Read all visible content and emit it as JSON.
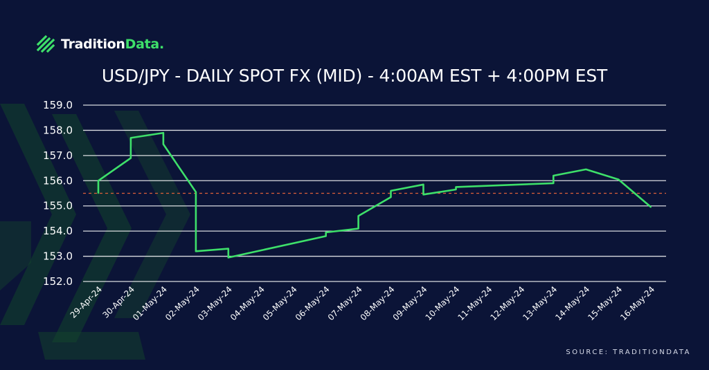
{
  "brand": {
    "name_part1": "Tradition",
    "name_part2": "Data",
    "name_part3": "."
  },
  "colors": {
    "background": "#0b1437",
    "line": "#3ee06a",
    "reference_line": "#e0603a",
    "grid": "#ffffff",
    "brand_accent": "#3ee06a",
    "bg_chevron": "#13432c"
  },
  "source_text": "SOURCE: TRADITIONDATA",
  "chart_data": {
    "type": "line",
    "title": "USD/JPY - DAILY SPOT FX (MID) - 4:00AM EST + 4:00PM EST",
    "xlabel": "",
    "ylabel": "",
    "ylim": [
      152.0,
      159.0
    ],
    "yticks": [
      152.0,
      153.0,
      154.0,
      155.0,
      156.0,
      157.0,
      158.0,
      159.0
    ],
    "categories": [
      "29-Apr-24",
      "30-Apr-24",
      "01-May-24",
      "02-May-24",
      "03-May-24",
      "04-May-24",
      "05-May-24",
      "06-May-24",
      "07-May-24",
      "08-May-24",
      "09-May-24",
      "10-May-24",
      "11-May-24",
      "12-May-24",
      "13-May-24",
      "14-May-24",
      "15-May-24",
      "16-May-24"
    ],
    "grid": true,
    "legend": "none",
    "reference_line": {
      "value": 155.5,
      "style": "dashed"
    },
    "series": [
      {
        "points": [
          [
            0,
            155.5
          ],
          [
            0,
            156.0
          ],
          [
            1,
            156.9
          ],
          [
            1,
            157.7
          ],
          [
            2,
            157.9
          ],
          [
            2,
            157.45
          ],
          [
            3,
            155.55
          ],
          [
            3,
            153.2
          ],
          [
            4,
            153.3
          ],
          [
            4,
            152.95
          ],
          [
            7,
            153.8
          ],
          [
            7,
            153.95
          ],
          [
            8,
            154.1
          ],
          [
            8,
            154.6
          ],
          [
            9,
            155.35
          ],
          [
            9,
            155.6
          ],
          [
            10,
            155.85
          ],
          [
            10,
            155.45
          ],
          [
            11,
            155.65
          ],
          [
            11,
            155.75
          ],
          [
            14,
            155.9
          ],
          [
            14,
            156.2
          ],
          [
            15,
            156.45
          ],
          [
            16,
            156.05
          ],
          [
            17,
            154.95
          ]
        ]
      }
    ]
  }
}
